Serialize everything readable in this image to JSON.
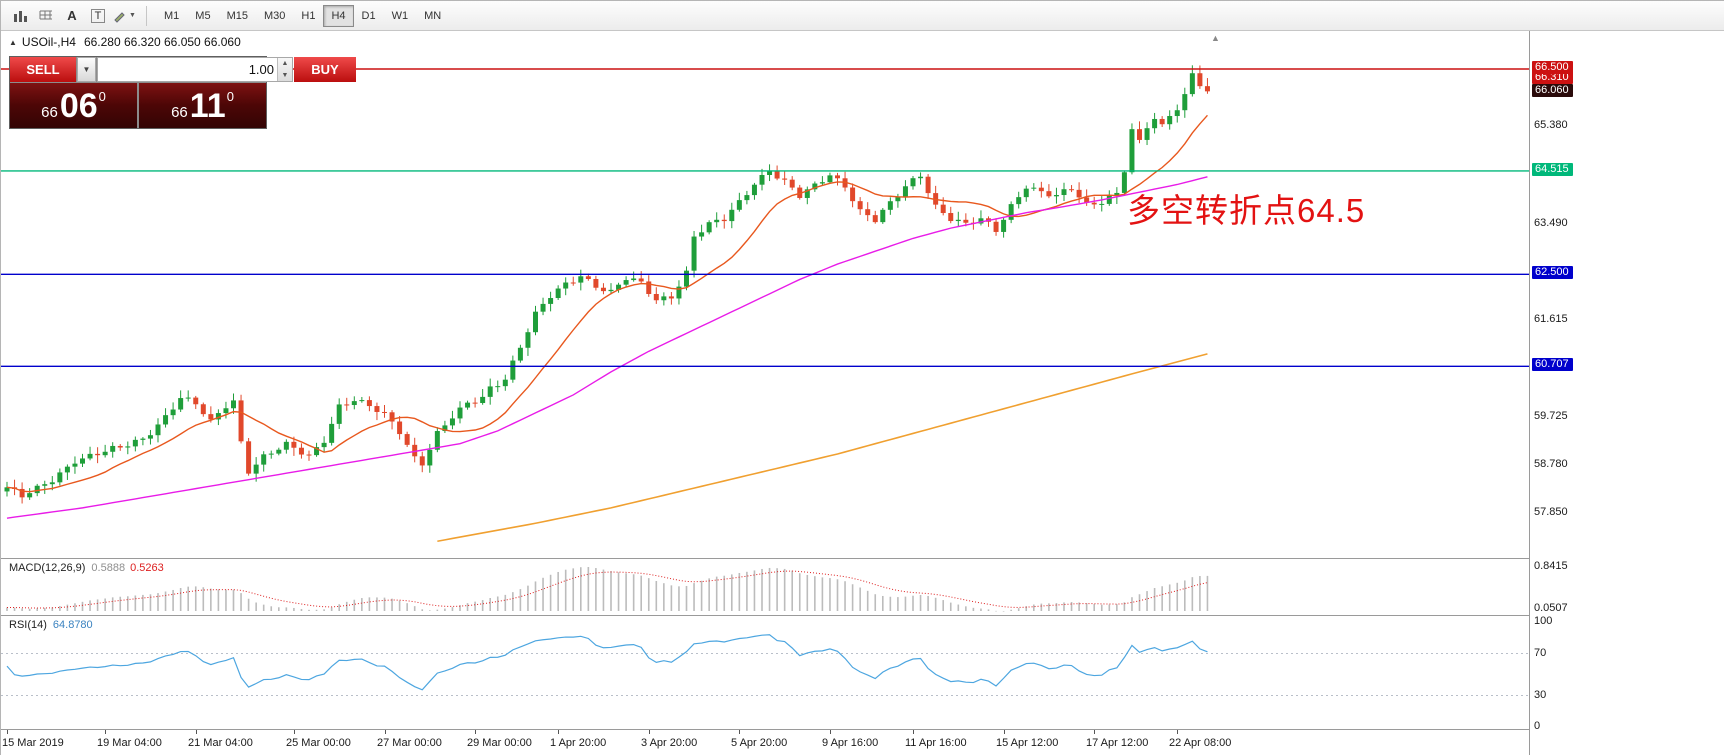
{
  "toolbar": {
    "icons": [
      {
        "name": "chart-style-icon",
        "glyph": "bars"
      },
      {
        "name": "indicator-list-icon",
        "glyph": "grid"
      },
      {
        "name": "font-label-icon",
        "glyph": "A"
      },
      {
        "name": "text-tool-icon",
        "glyph": "T"
      },
      {
        "name": "drawing-tools-icon",
        "glyph": "pen"
      }
    ],
    "timeframes": [
      "M1",
      "M5",
      "M15",
      "M30",
      "H1",
      "H4",
      "D1",
      "W1",
      "MN"
    ],
    "active_timeframe": "H4"
  },
  "chart_header": {
    "marker": "▲",
    "symbol": "USOil-,H4",
    "quotes": "66.280 66.320 66.050 66.060"
  },
  "trade_panel": {
    "sell_label": "SELL",
    "buy_label": "BUY",
    "volume": "1.00",
    "dropdown_glyph": "▼",
    "spin_up_glyph": "▲",
    "spin_down_glyph": "▼",
    "sell_price_small": "66",
    "sell_price_big": "06",
    "sell_price_sup": "0",
    "buy_price_small": "66",
    "buy_price_big": "11",
    "buy_price_sup": "0"
  },
  "annotation": {
    "text": "多空转折点64.5"
  },
  "indicators": {
    "macd": {
      "name": "MACD(12,26,9)",
      "main_value": "0.5888",
      "signal_value": "0.5263",
      "scale_top": "0.8415",
      "scale_bottom": "0.0507"
    },
    "rsi": {
      "name": "RSI(14)",
      "value": "64.8780",
      "levels": [
        100,
        70,
        30,
        0
      ]
    }
  },
  "colors": {
    "bull": "#1f9e3a",
    "bear": "#e1482b",
    "ma_fast": "#e8581e",
    "ma_mid": "#e81ce8",
    "ma_slow": "#f0a030",
    "hline_red": "#cc1111",
    "hline_green": "#00b87a",
    "hline_blue": "#0000cc",
    "current_price_badge": "#2a0a0a",
    "macd_hist": "#bcbcbc",
    "macd_signal": "#dd2020",
    "rsi_line": "#4da6e0",
    "rsi_levels": "#b9bfc9",
    "annotation": "#e31212",
    "trade_button_red": "#bb0e0e",
    "trade_box_dark": "#4c0606"
  },
  "chart_data": {
    "type": "candlestick",
    "symbol": "USOil-",
    "timeframe": "H4",
    "bars": 160,
    "ylim": [
      56.95,
      67.25
    ],
    "close_path": [
      [
        0,
        58.35
      ],
      [
        2,
        58.15
      ],
      [
        4,
        58.3
      ],
      [
        6,
        58.5
      ],
      [
        9,
        58.9
      ],
      [
        12,
        59.0
      ],
      [
        15,
        59.1
      ],
      [
        18,
        59.3
      ],
      [
        21,
        59.75
      ],
      [
        23,
        60.1
      ],
      [
        25,
        59.95
      ],
      [
        27,
        59.6
      ],
      [
        29,
        59.95
      ],
      [
        30,
        60.05
      ],
      [
        31,
        59.25
      ],
      [
        32,
        58.7
      ],
      [
        34,
        58.95
      ],
      [
        37,
        59.15
      ],
      [
        40,
        58.95
      ],
      [
        42,
        59.3
      ],
      [
        44,
        59.95
      ],
      [
        46,
        60.05
      ],
      [
        48,
        59.9
      ],
      [
        50,
        59.75
      ],
      [
        52,
        59.45
      ],
      [
        54,
        58.95
      ],
      [
        55,
        58.85
      ],
      [
        57,
        59.4
      ],
      [
        59,
        59.7
      ],
      [
        61,
        59.95
      ],
      [
        63,
        60.1
      ],
      [
        64,
        60.3
      ],
      [
        66,
        60.5
      ],
      [
        68,
        61.1
      ],
      [
        70,
        61.7
      ],
      [
        72,
        62.05
      ],
      [
        74,
        62.3
      ],
      [
        76,
        62.5
      ],
      [
        78,
        62.3
      ],
      [
        80,
        62.15
      ],
      [
        82,
        62.4
      ],
      [
        84,
        62.3
      ],
      [
        86,
        62.0
      ],
      [
        88,
        62.1
      ],
      [
        90,
        62.55
      ],
      [
        91,
        63.25
      ],
      [
        93,
        63.45
      ],
      [
        95,
        63.55
      ],
      [
        97,
        63.9
      ],
      [
        99,
        64.3
      ],
      [
        101,
        64.55
      ],
      [
        103,
        64.3
      ],
      [
        105,
        64.0
      ],
      [
        107,
        64.2
      ],
      [
        109,
        64.45
      ],
      [
        111,
        64.25
      ],
      [
        113,
        63.75
      ],
      [
        115,
        63.55
      ],
      [
        117,
        63.85
      ],
      [
        119,
        64.2
      ],
      [
        121,
        64.45
      ],
      [
        123,
        63.85
      ],
      [
        125,
        63.6
      ],
      [
        127,
        63.45
      ],
      [
        129,
        63.55
      ],
      [
        131,
        63.35
      ],
      [
        133,
        63.85
      ],
      [
        135,
        64.25
      ],
      [
        137,
        64.1
      ],
      [
        139,
        64.0
      ],
      [
        141,
        64.15
      ],
      [
        143,
        63.85
      ],
      [
        145,
        63.95
      ],
      [
        147,
        64.1
      ],
      [
        148,
        64.55
      ],
      [
        149,
        65.3
      ],
      [
        150,
        65.05
      ],
      [
        151,
        65.35
      ],
      [
        152,
        65.5
      ],
      [
        153,
        65.35
      ],
      [
        154,
        65.6
      ],
      [
        155,
        65.75
      ],
      [
        156,
        66.0
      ],
      [
        157,
        66.45
      ],
      [
        158,
        66.25
      ],
      [
        159,
        66.06
      ]
    ],
    "moving_averages": [
      {
        "name": "fast",
        "derive": "sma12_of_close"
      },
      {
        "name": "mid",
        "path": [
          [
            0,
            57.75
          ],
          [
            10,
            57.95
          ],
          [
            20,
            58.2
          ],
          [
            30,
            58.45
          ],
          [
            40,
            58.7
          ],
          [
            50,
            58.95
          ],
          [
            60,
            59.2
          ],
          [
            65,
            59.45
          ],
          [
            70,
            59.8
          ],
          [
            75,
            60.15
          ],
          [
            80,
            60.6
          ],
          [
            85,
            61.0
          ],
          [
            90,
            61.35
          ],
          [
            95,
            61.7
          ],
          [
            100,
            62.05
          ],
          [
            105,
            62.4
          ],
          [
            110,
            62.7
          ],
          [
            115,
            62.95
          ],
          [
            120,
            63.2
          ],
          [
            125,
            63.4
          ],
          [
            130,
            63.55
          ],
          [
            135,
            63.7
          ],
          [
            140,
            63.82
          ],
          [
            145,
            63.95
          ],
          [
            150,
            64.1
          ],
          [
            155,
            64.25
          ],
          [
            159,
            64.4
          ]
        ]
      },
      {
        "name": "slow",
        "path": [
          [
            57,
            57.3
          ],
          [
            70,
            57.65
          ],
          [
            80,
            57.95
          ],
          [
            90,
            58.3
          ],
          [
            100,
            58.65
          ],
          [
            110,
            59.0
          ],
          [
            120,
            59.4
          ],
          [
            130,
            59.8
          ],
          [
            140,
            60.2
          ],
          [
            150,
            60.6
          ],
          [
            159,
            60.95
          ]
        ]
      }
    ],
    "hlines": [
      {
        "price": 66.5,
        "color_key": "hline_red"
      },
      {
        "price": 64.515,
        "color_key": "hline_green"
      },
      {
        "price": 62.5,
        "color_key": "hline_blue"
      },
      {
        "price": 60.707,
        "color_key": "hline_blue"
      }
    ],
    "price_badges": [
      {
        "label": "66.310",
        "price": 66.31,
        "color_key": "hline_red"
      },
      {
        "label": "66.500",
        "price": 66.5,
        "color_key": "hline_red"
      },
      {
        "label": "66.060",
        "price": 66.06,
        "color_key": "current_price_badge"
      },
      {
        "label": "64.515",
        "price": 64.515,
        "color_key": "hline_green"
      },
      {
        "label": "62.500",
        "price": 62.5,
        "color_key": "hline_blue"
      },
      {
        "label": "60.707",
        "price": 60.707,
        "color_key": "hline_blue"
      }
    ],
    "price_labels_plain": [
      "65.380",
      "63.490",
      "61.615",
      "59.725",
      "58.780",
      "57.850"
    ],
    "time_labels": [
      [
        0,
        "15 Mar 2019"
      ],
      [
        13,
        "19 Mar 04:00"
      ],
      [
        25,
        "21 Mar 04:00"
      ],
      [
        38,
        "25 Mar 00:00"
      ],
      [
        50,
        "27 Mar 00:00"
      ],
      [
        62,
        "29 Mar 00:00"
      ],
      [
        73,
        "1 Apr 20:00"
      ],
      [
        85,
        "3 Apr 20:00"
      ],
      [
        97,
        "5 Apr 20:00"
      ],
      [
        109,
        "9 Apr 16:00"
      ],
      [
        120,
        "11 Apr 16:00"
      ],
      [
        132,
        "15 Apr 12:00"
      ],
      [
        144,
        "17 Apr 12:00"
      ],
      [
        155,
        "22 Apr 08:00"
      ]
    ]
  }
}
